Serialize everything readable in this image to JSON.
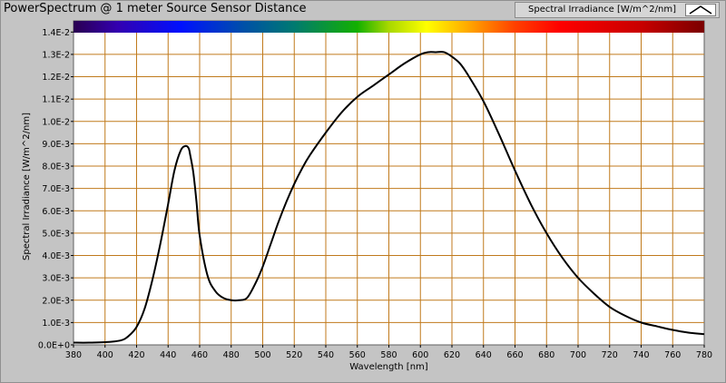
{
  "window": {
    "title": "PowerSpectrum @ 1 meter Source Sensor Distance"
  },
  "legend": {
    "label": "Spectral Irradiance [W/m^2/nm]",
    "icon": "line-sample-icon"
  },
  "colors": {
    "background": "#c4c4c4",
    "plot_background": "#ffffff",
    "grid": "#c07a1c",
    "curve": "#000000"
  },
  "chart_data": {
    "type": "line",
    "title": "PowerSpectrum @ 1 meter Source Sensor Distance",
    "xlabel": "Wavelength [nm]",
    "ylabel": "Spectral Irradiance [W/m^2/nm]",
    "xlim": [
      380,
      780
    ],
    "ylim": [
      0,
      0.0145
    ],
    "grid": true,
    "legend_position": "top-right",
    "spectrum_bar": "rainbow color bar from violet to dark red across the top of the plot",
    "x_ticks": [
      "380",
      "400",
      "420",
      "440",
      "460",
      "480",
      "500",
      "520",
      "540",
      "560",
      "580",
      "600",
      "620",
      "640",
      "660",
      "680",
      "700",
      "720",
      "740",
      "760",
      "780"
    ],
    "y_ticks": [
      "0.0E+0",
      "1.0E-3",
      "2.0E-3",
      "3.0E-3",
      "4.0E-3",
      "5.0E-3",
      "6.0E-3",
      "7.0E-3",
      "8.0E-3",
      "9.0E-3",
      "1.0E-2",
      "1.1E-2",
      "1.2E-2",
      "1.3E-2",
      "1.4E-2"
    ],
    "series": [
      {
        "name": "Spectral Irradiance [W/m^2/nm]",
        "x": [
          380,
          390,
          400,
          410,
          415,
          420,
          425,
          430,
          435,
          440,
          444,
          448,
          451,
          453,
          454,
          456,
          458,
          460,
          465,
          470,
          475,
          480,
          485,
          490,
          495,
          500,
          505,
          510,
          515,
          520,
          525,
          530,
          540,
          550,
          560,
          570,
          580,
          590,
          600,
          605,
          610,
          615,
          620,
          625,
          630,
          640,
          650,
          660,
          670,
          680,
          690,
          700,
          710,
          720,
          730,
          740,
          750,
          760,
          770,
          780
        ],
        "y": [
          0.0001,
          0.0001,
          0.00012,
          0.0002,
          0.0004,
          0.0008,
          0.0016,
          0.0029,
          0.0045,
          0.0063,
          0.0078,
          0.0087,
          0.0089,
          0.0088,
          0.0085,
          0.0077,
          0.0064,
          0.0049,
          0.0031,
          0.0024,
          0.0021,
          0.002,
          0.002,
          0.0021,
          0.0027,
          0.0035,
          0.0045,
          0.0055,
          0.0064,
          0.0072,
          0.0079,
          0.0085,
          0.0095,
          0.0104,
          0.0111,
          0.0116,
          0.0121,
          0.0126,
          0.013,
          0.0131,
          0.0131,
          0.0131,
          0.0129,
          0.0126,
          0.0121,
          0.0109,
          0.0094,
          0.0078,
          0.0063,
          0.005,
          0.0039,
          0.003,
          0.0023,
          0.0017,
          0.0013,
          0.001,
          0.00083,
          0.00067,
          0.00055,
          0.00048
        ]
      }
    ]
  }
}
